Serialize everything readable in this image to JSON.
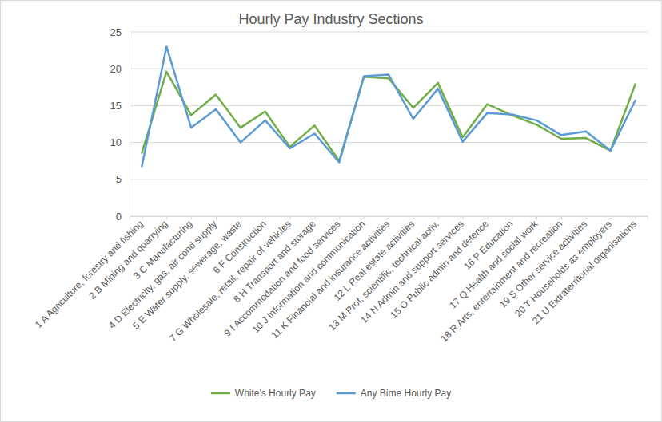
{
  "chart_data": {
    "type": "line",
    "title": "Hourly Pay Industry Sections",
    "categories": [
      "1 A Agriculture, forestry and fishing",
      "2 B Mining and quarrying",
      "3 C Manufacturing",
      "4 D Electricity, gas, air cond supply",
      "5 E Water supply, sewerage, waste",
      "6 F Construction",
      "7 G Wholesale, retail, repair of vehicles",
      "8 H Transport and storage",
      "9 I Accommodation and food services",
      "10 J Information and communication",
      "11 K Financial and insurance activities",
      "12 L Real estate activities",
      "13 M Prof, scientific, technical activ.",
      "14 N Admin and support services",
      "15 O Public admin and defence",
      "16 P Education",
      "17 Q Health and social work",
      "18 R Arts, entertainment and recreation",
      "19 S Other service activities",
      "20 T Households as employers",
      "21 U Extraterritorial organisations"
    ],
    "series": [
      {
        "name": "White's Hourly Pay",
        "color": "#70ad47",
        "values": [
          8.6,
          19.6,
          13.7,
          16.5,
          12.0,
          14.2,
          9.4,
          12.3,
          7.5,
          18.9,
          18.7,
          14.7,
          18.1,
          10.7,
          15.2,
          13.7,
          12.4,
          10.5,
          10.6,
          8.9,
          17.9
        ]
      },
      {
        "name": "Any Bime Hourly Pay",
        "color": "#5b9bd5",
        "values": [
          6.8,
          23.0,
          12.0,
          14.5,
          10.0,
          13.0,
          9.2,
          11.2,
          7.3,
          19.0,
          19.2,
          13.2,
          17.3,
          10.1,
          14.0,
          13.8,
          13.0,
          11.0,
          11.5,
          8.9,
          15.7
        ]
      }
    ],
    "ylim": [
      0,
      25
    ],
    "yticks": [
      0,
      5,
      10,
      15,
      20,
      25
    ],
    "grid": true,
    "legend": "bottom"
  }
}
